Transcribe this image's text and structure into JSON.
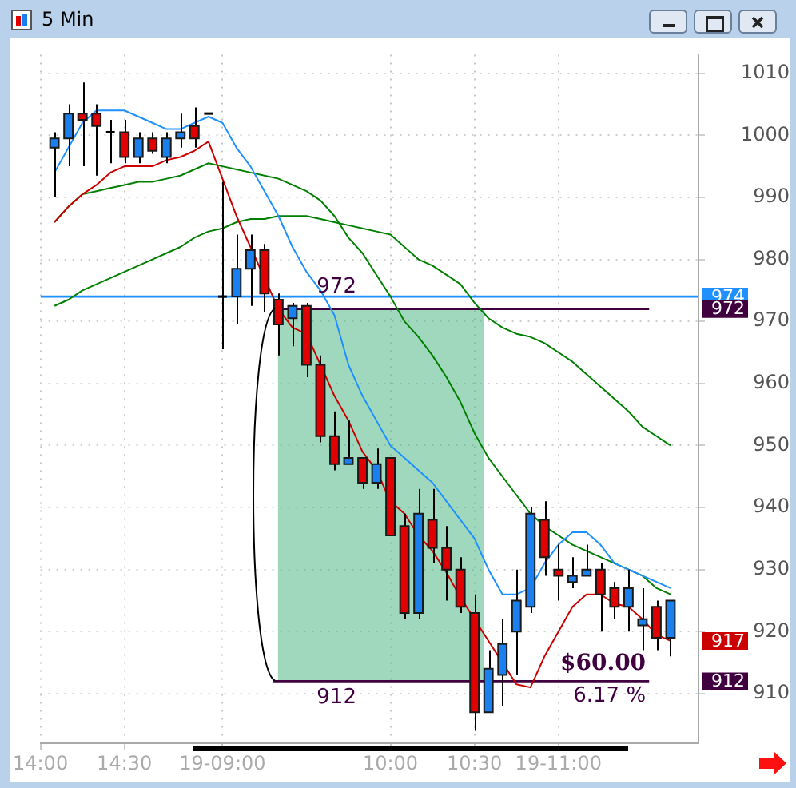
{
  "chart_data": {
    "type": "candlestick",
    "title": "5 Min",
    "categories": [
      "14:00",
      null,
      null,
      null,
      null,
      null,
      "14:30",
      null,
      null,
      null,
      null,
      null,
      null,
      "19-09:00",
      null,
      null,
      null,
      null,
      null,
      null,
      null,
      null,
      null,
      null,
      null,
      "10:00",
      null,
      null,
      null,
      null,
      null,
      "10:30",
      null,
      null,
      null,
      null,
      null,
      "19-11:00",
      null,
      null,
      null,
      null,
      null,
      null,
      null,
      null,
      null,
      null
    ],
    "ohlc": [
      null,
      [
        998,
        1000.5,
        990,
        999.5
      ],
      [
        999.5,
        1005,
        995,
        1003.5
      ],
      [
        1003.5,
        1008.5,
        995,
        1002.5
      ],
      [
        1003.5,
        1005,
        993.5,
        1001.5
      ],
      [
        1000.5,
        1002.5,
        995.5,
        1000.5
      ],
      [
        1000.5,
        1002.5,
        995.5,
        996.5
      ],
      [
        996.5,
        1000.5,
        995.5,
        999.5
      ],
      [
        999.5,
        1000.5,
        997,
        997.5
      ],
      [
        996.5,
        1000.5,
        995.5,
        999.5
      ],
      [
        999.5,
        1003.5,
        998,
        1000.5
      ],
      [
        1001.5,
        1004.5,
        998,
        999.5
      ],
      [
        1003.5,
        1003.5,
        1003.5,
        1003.5
      ],
      [
        974,
        992.5,
        965.5,
        974
      ],
      [
        974,
        984,
        969.5,
        978.5
      ],
      [
        978.5,
        984,
        972.5,
        981.5
      ],
      [
        981.5,
        982.5,
        971.5,
        974.5
      ],
      [
        973.5,
        974.5,
        964.5,
        969.5
      ],
      [
        970.5,
        973,
        966,
        972.5
      ],
      [
        972.5,
        973,
        961,
        963
      ],
      [
        963,
        964.5,
        950.5,
        951.5
      ],
      [
        951.5,
        955.5,
        946,
        947
      ],
      [
        947,
        954,
        947,
        948
      ],
      [
        948,
        948,
        943,
        944
      ],
      [
        944,
        949.5,
        943,
        947
      ],
      [
        948,
        948,
        935.5,
        935.5
      ],
      [
        937,
        939,
        922,
        923
      ],
      [
        923,
        943,
        922,
        939
      ],
      [
        938,
        943,
        931,
        933.5
      ],
      [
        933.5,
        937,
        925,
        930
      ],
      [
        930,
        932,
        923,
        924
      ],
      [
        923,
        926,
        904,
        907
      ],
      [
        907,
        917,
        907,
        914
      ],
      [
        913,
        922,
        908,
        918
      ],
      [
        920,
        930,
        913,
        925
      ],
      [
        924,
        940,
        923,
        939
      ],
      [
        938,
        941,
        929,
        932
      ],
      [
        930,
        934,
        925,
        929
      ],
      [
        928,
        932,
        927,
        929
      ],
      [
        929,
        934,
        929,
        930
      ],
      [
        930,
        931,
        920,
        926
      ],
      [
        927,
        928,
        922,
        924
      ],
      [
        924,
        930,
        920,
        927
      ],
      [
        921,
        927,
        917,
        922
      ],
      [
        924,
        925,
        917,
        919
      ],
      [
        919,
        925,
        916,
        925
      ],
      null,
      null
    ],
    "colors": [
      null,
      "#1a80f0",
      "#1a80f0",
      "#e00000",
      "#e00000",
      "#000000",
      "#e00000",
      "#1a80f0",
      "#e00000",
      "#1a80f0",
      "#1a80f0",
      "#e00000",
      "#000000",
      "#000000",
      "#1a80f0",
      "#1a80f0",
      "#e00000",
      "#e00000",
      "#1a80f0",
      "#e00000",
      "#e00000",
      "#e00000",
      "#1a80f0",
      "#e00000",
      "#1a80f0",
      "#e00000",
      "#e00000",
      "#1a80f0",
      "#e00000",
      "#e00000",
      "#e00000",
      "#e00000",
      "#1a80f0",
      "#1a80f0",
      "#1a80f0",
      "#1a80f0",
      "#e00000",
      "#e00000",
      "#1a80f0",
      "#1a80f0",
      "#e00000",
      "#e00000",
      "#1a80f0",
      "#1a80f0",
      "#e00000",
      "#1a80f0",
      null,
      null
    ],
    "series": [
      {
        "type": "line",
        "color": "#1e90ff",
        "values": [
          null,
          994,
          998,
          1002,
          1004,
          1004,
          1004,
          1003,
          1002,
          1001,
          1001,
          1002,
          1003,
          1002,
          998,
          995,
          991,
          987,
          982,
          978,
          975,
          971,
          963,
          958,
          954,
          950,
          948,
          946,
          944,
          941,
          938,
          935,
          930,
          926,
          926,
          927,
          931,
          934,
          936,
          936,
          934,
          931,
          930,
          929,
          928,
          927,
          null,
          null
        ]
      },
      {
        "type": "line",
        "color": "#cc0000",
        "values": [
          null,
          986,
          988.5,
          990.5,
          992,
          994,
          995,
          995,
          995,
          996,
          996.5,
          997.5,
          999,
          993,
          987,
          982,
          977,
          972,
          969,
          968,
          963,
          958,
          954,
          949,
          946,
          941,
          939,
          935.5,
          933,
          929.5,
          925.5,
          922,
          918.5,
          915,
          911.5,
          911,
          916,
          920,
          924,
          926,
          926,
          924.5,
          924,
          922,
          919.5,
          918.5,
          null,
          null
        ]
      },
      {
        "type": "line",
        "color": "#008000",
        "values": [
          null,
          986,
          988.5,
          990.5,
          991,
          991.5,
          992,
          992.5,
          992.5,
          993,
          993.5,
          994.5,
          995.5,
          995,
          994.5,
          994,
          993.5,
          993,
          992,
          991,
          989.5,
          987,
          983.5,
          981,
          977.5,
          974,
          970,
          967.5,
          964.5,
          961,
          957,
          952,
          948,
          945,
          942,
          939,
          937,
          935.5,
          934,
          933,
          932,
          931,
          930,
          929,
          927,
          926,
          null,
          null
        ]
      },
      {
        "type": "line",
        "color": "#008000",
        "values": [
          null,
          972.5,
          973.5,
          975,
          976,
          977,
          978,
          979,
          980,
          981,
          982,
          983.5,
          984.5,
          985,
          986,
          986.5,
          986.5,
          987,
          987,
          987,
          986.5,
          986,
          985.5,
          985,
          984.5,
          984,
          982,
          980,
          979,
          977.5,
          976,
          973,
          970.5,
          969,
          968,
          967.5,
          966.5,
          965,
          963.5,
          961.5,
          959.5,
          957.5,
          955.5,
          953,
          951.5,
          950,
          null,
          null
        ]
      }
    ],
    "ylim": [
      902,
      1013
    ],
    "yticks": [
      910,
      920,
      930,
      940,
      950,
      960,
      970,
      980,
      990,
      1000,
      1010
    ],
    "grid": true,
    "legend": false,
    "ref_lines": [
      {
        "axis": "y",
        "value": 974,
        "label": "974",
        "color": "#1e90ff"
      },
      {
        "axis": "y",
        "value": 972,
        "label": "972",
        "color": "#400040"
      },
      {
        "axis": "y",
        "value": 912,
        "label": "912",
        "color": "#400040"
      }
    ],
    "bands": [
      {
        "axis": "y",
        "from": 912,
        "to": 972,
        "color": "#3fb27a"
      }
    ],
    "annotations": [
      "972",
      "912",
      "$60.00",
      "6.17 %",
      "917"
    ]
  }
}
